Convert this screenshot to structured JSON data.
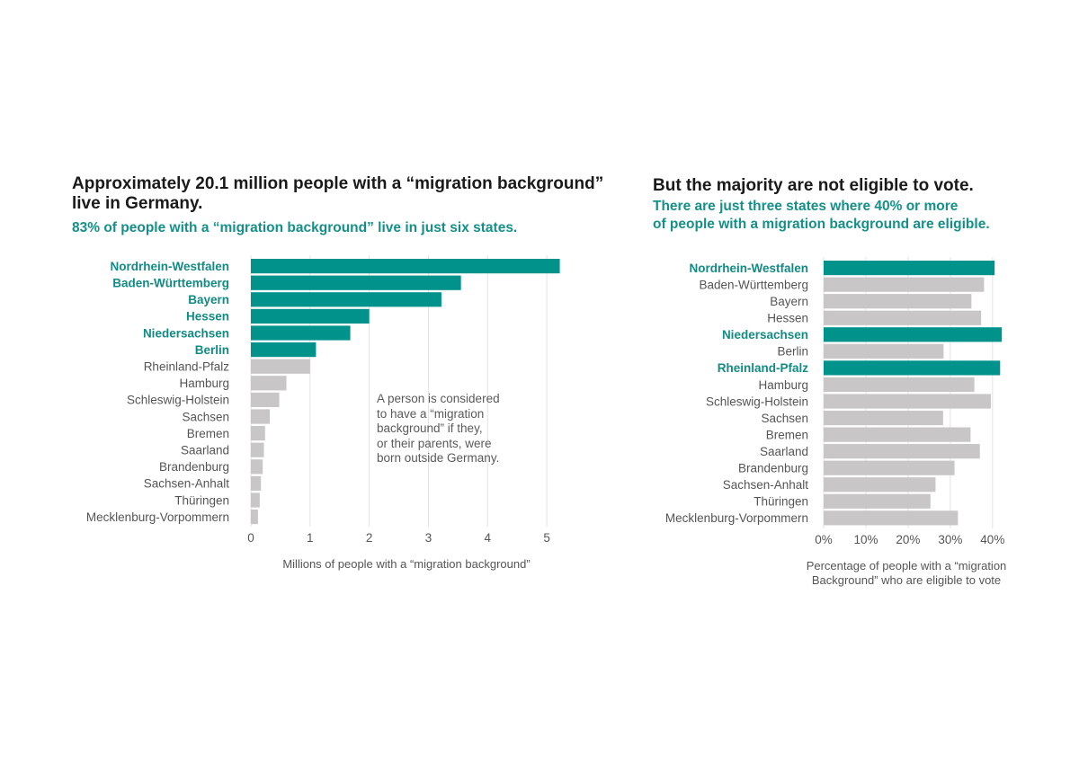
{
  "chart_data": [
    {
      "type": "bar",
      "orientation": "horizontal",
      "title": "Approximately 20.1 million people with a “migration background” live in Germany.",
      "title_lines": [
        "Approximately 20.1 million people with a “migration background”",
        "live in Germany."
      ],
      "subtitle": "83% of people with a “migration background” live in just six states.",
      "subtitle_lines": [
        "83% of people with a “migration background” live in just six states."
      ],
      "categories": [
        "Nordrhein-Westfalen",
        "Baden-Württemberg",
        "Bayern",
        "Hessen",
        "Niedersachsen",
        "Berlin",
        "Rheinland-Pfalz",
        "Hamburg",
        "Schleswig-Holstein",
        "Sachsen",
        "Bremen",
        "Saarland",
        "Brandenburg",
        "Sachsen-Anhalt",
        "Thüringen",
        "Mecklenburg-Vorpommern"
      ],
      "values": [
        5.22,
        3.55,
        3.22,
        2.0,
        1.68,
        1.1,
        1.0,
        0.6,
        0.48,
        0.32,
        0.24,
        0.22,
        0.2,
        0.17,
        0.15,
        0.12
      ],
      "highlighted": [
        "Nordrhein-Westfalen",
        "Baden-Württemberg",
        "Bayern",
        "Hessen",
        "Niedersachsen",
        "Berlin"
      ],
      "xlim": [
        0,
        5.5
      ],
      "xticks": [
        0,
        1,
        2,
        3,
        4,
        5
      ],
      "xtick_labels": [
        "0",
        "1",
        "2",
        "3",
        "4",
        "5"
      ],
      "xlabel": "Millions of people with a “migration background”",
      "xlabel_lines": [
        "Millions of people with a “migration background”"
      ],
      "ylabel": "",
      "grid": true,
      "annotation": "A person is considered to have a “migration background” if they, or their parents, were born outside Germany.",
      "annotation_lines": [
        "A person is considered",
        "to have a “migration",
        "background” if they,",
        "or their parents, were",
        "born outside Germany."
      ]
    },
    {
      "type": "bar",
      "orientation": "horizontal",
      "title": "But the majority are not eligible to vote.",
      "title_lines": [
        "But the majority are not eligible to vote."
      ],
      "subtitle": "There are  just three states where 40% or more of people with a migration background are eligible.",
      "subtitle_lines": [
        "There are  just three states where 40% or more",
        "of people with a migration background are eligible."
      ],
      "categories": [
        "Nordrhein-Westfalen",
        "Baden-Württemberg",
        "Bayern",
        "Hessen",
        "Niedersachsen",
        "Berlin",
        "Rheinland-Pfalz",
        "Hamburg",
        "Schleswig-Holstein",
        "Sachsen",
        "Bremen",
        "Saarland",
        "Brandenburg",
        "Sachsen-Anhalt",
        "Thüringen",
        "Mecklenburg-Vorpommern"
      ],
      "values": [
        40.5,
        38.0,
        35.0,
        37.3,
        42.2,
        28.4,
        41.8,
        35.7,
        39.6,
        28.3,
        34.8,
        37.0,
        31.0,
        26.5,
        25.3,
        31.8
      ],
      "highlighted": [
        "Nordrhein-Westfalen",
        "Niedersachsen",
        "Rheinland-Pfalz"
      ],
      "xlim": [
        0,
        46
      ],
      "xticks": [
        0,
        10,
        20,
        30,
        40
      ],
      "xtick_labels": [
        "0%",
        "10%",
        "20%",
        "30%",
        "40%"
      ],
      "xlabel": "Percentage of people with a “migration Background” who are eligible to vote",
      "xlabel_lines": [
        "Percentage of people with a “migration",
        "Background” who are eligible to vote"
      ],
      "ylabel": "",
      "grid": true
    }
  ],
  "colors": {
    "highlight": "#00928b",
    "base": "#c8c6c6",
    "grid": "#e3e3e3",
    "label": "#555555",
    "highlight_label": "#138b85"
  }
}
